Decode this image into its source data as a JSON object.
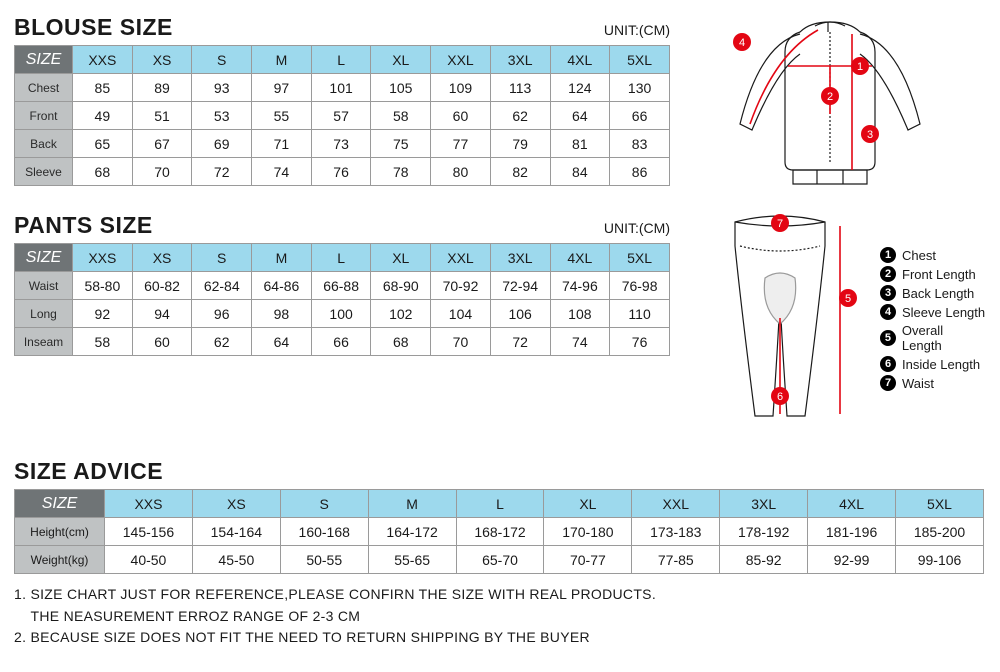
{
  "colors": {
    "header_bg": "#6f7476",
    "header_fg": "#ffffff",
    "colhead_bg": "#9dd9ed",
    "rowlabel_bg": "#bfc2c3",
    "border": "#9a9a9a",
    "diagram_red": "#e30613",
    "text": "#1a1a1a"
  },
  "blouse": {
    "title": "BLOUSE SIZE",
    "unit": "UNIT:(CM)",
    "size_header": "SIZE",
    "columns": [
      "XXS",
      "XS",
      "S",
      "M",
      "L",
      "XL",
      "XXL",
      "3XL",
      "4XL",
      "5XL"
    ],
    "rows": [
      {
        "label": "Chest",
        "values": [
          "85",
          "89",
          "93",
          "97",
          "101",
          "105",
          "109",
          "113",
          "124",
          "130"
        ]
      },
      {
        "label": "Front",
        "values": [
          "49",
          "51",
          "53",
          "55",
          "57",
          "58",
          "60",
          "62",
          "64",
          "66"
        ]
      },
      {
        "label": "Back",
        "values": [
          "65",
          "67",
          "69",
          "71",
          "73",
          "75",
          "77",
          "79",
          "81",
          "83"
        ]
      },
      {
        "label": "Sleeve",
        "values": [
          "68",
          "70",
          "72",
          "74",
          "76",
          "78",
          "80",
          "82",
          "84",
          "86"
        ]
      }
    ]
  },
  "pants": {
    "title": "PANTS SIZE",
    "unit": "UNIT:(CM)",
    "size_header": "SIZE",
    "columns": [
      "XXS",
      "XS",
      "S",
      "M",
      "L",
      "XL",
      "XXL",
      "3XL",
      "4XL",
      "5XL"
    ],
    "rows": [
      {
        "label": "Waist",
        "values": [
          "58-80",
          "60-82",
          "62-84",
          "64-86",
          "66-88",
          "68-90",
          "70-92",
          "72-94",
          "74-96",
          "76-98"
        ]
      },
      {
        "label": "Long",
        "values": [
          "92",
          "94",
          "96",
          "98",
          "100",
          "102",
          "104",
          "106",
          "108",
          "110"
        ]
      },
      {
        "label": "Inseam",
        "values": [
          "58",
          "60",
          "62",
          "64",
          "66",
          "68",
          "70",
          "72",
          "74",
          "76"
        ]
      }
    ]
  },
  "advice": {
    "title": "SIZE ADVICE",
    "size_header": "SIZE",
    "columns": [
      "XXS",
      "XS",
      "S",
      "M",
      "L",
      "XL",
      "XXL",
      "3XL",
      "4XL",
      "5XL"
    ],
    "rows": [
      {
        "label": "Height(cm)",
        "values": [
          "145-156",
          "154-164",
          "160-168",
          "164-172",
          "168-172",
          "170-180",
          "173-183",
          "178-192",
          "181-196",
          "185-200"
        ]
      },
      {
        "label": "Weight(kg)",
        "values": [
          "40-50",
          "45-50",
          "50-55",
          "55-65",
          "65-70",
          "70-77",
          "77-85",
          "85-92",
          "92-99",
          "99-106"
        ]
      }
    ]
  },
  "legend": {
    "items": [
      {
        "num": "1",
        "label": "Chest"
      },
      {
        "num": "2",
        "label": "Front Length"
      },
      {
        "num": "3",
        "label": "Back Length"
      },
      {
        "num": "4",
        "label": "Sleeve Length"
      },
      {
        "num": "5",
        "label": "Overall Length"
      },
      {
        "num": "6",
        "label": "Inside Length"
      },
      {
        "num": "7",
        "label": "Waist"
      }
    ]
  },
  "notes": {
    "line1": "1. SIZE CHART JUST FOR REFERENCE,PLEASE CONFIRN THE SIZE WITH REAL PRODUCTS.",
    "line2": "    THE NEASUREMENT ERROZ RANGE OF 2-3 CM",
    "line3": "2. BECAUSE SIZE DOES NOT FIT THE NEED TO RETURN SHIPPING BY THE BUYER"
  },
  "diagram": {
    "markers": [
      "1",
      "2",
      "3",
      "4",
      "5",
      "6",
      "7"
    ]
  }
}
